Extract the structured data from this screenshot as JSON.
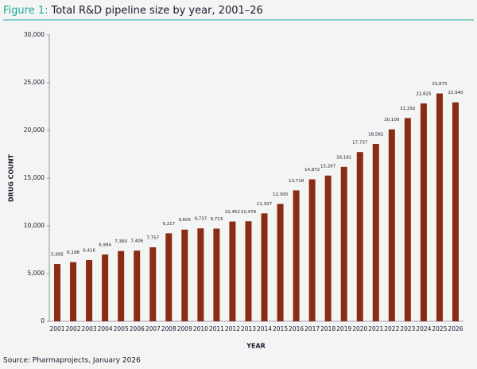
{
  "chart_data": {
    "type": "bar",
    "title_label": "Figure 1:",
    "title": "Total R&D pipeline size by year, 2001–26",
    "x_label": "YEAR",
    "y_label": "DRUG COUNT",
    "source": "Source: Pharmaprojects, January 2026",
    "categories": [
      "2001",
      "2002",
      "2003",
      "2004",
      "2005",
      "2006",
      "2007",
      "2008",
      "2009",
      "2010",
      "2011",
      "2012",
      "2013",
      "2014",
      "2015",
      "2016",
      "2017",
      "2018",
      "2019",
      "2020",
      "2021",
      "2022",
      "2023",
      "2024",
      "2025",
      "2026"
    ],
    "values": [
      5995,
      6198,
      6416,
      6994,
      7360,
      7406,
      7757,
      9217,
      9605,
      9737,
      9713,
      10452,
      10479,
      11307,
      12300,
      13718,
      14872,
      15267,
      16181,
      17737,
      18582,
      20109,
      21292,
      22825,
      23875,
      22940
    ],
    "value_labels": [
      "5,995",
      "6,198",
      "6,416",
      "6,994",
      "7,360",
      "7,406",
      "7,757",
      "9,217",
      "9,605",
      "9,737",
      "9,713",
      "10,452",
      "10,479",
      "11,307",
      "12,300",
      "13,718",
      "14,872",
      "15,267",
      "16,181",
      "17,737",
      "18,582",
      "20,109",
      "21,292",
      "22,825",
      "23,875",
      "22,940"
    ],
    "color": "#8a2b14",
    "ylim": [
      0,
      30000
    ],
    "yticks": [
      0,
      {
        "value": 5000,
        "label": "5,000"
      },
      {
        "value": 10000,
        "label": "10,000"
      },
      {
        "value": 15000,
        "label": "15,000"
      },
      {
        "value": 20000,
        "label": "20,000"
      },
      {
        "value": 25000,
        "label": "25,000"
      },
      {
        "value": 30000,
        "label": "30,000"
      }
    ],
    "grid": false
  }
}
